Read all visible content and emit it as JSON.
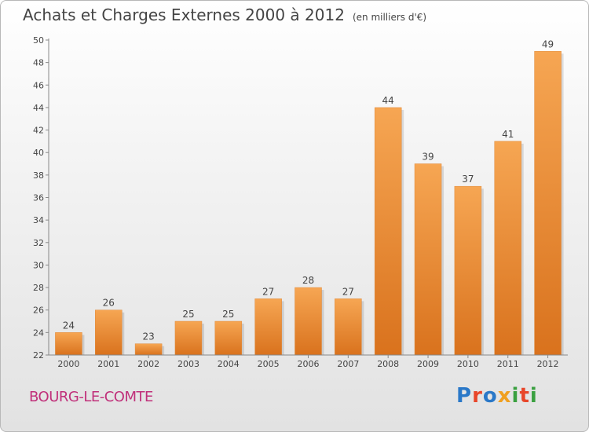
{
  "header": {
    "title": "Achats et Charges Externes 2000 à 2012",
    "unit": "(en milliers d'€)"
  },
  "footer": {
    "commune": "BOURG-LE-COMTE",
    "logo_text": "Proxiti",
    "logo_colors": [
      "#2a78c8",
      "#e8462a",
      "#2a78c8",
      "#f0a020",
      "#3aa040",
      "#e8462a",
      "#3aa040"
    ]
  },
  "colors": {
    "bar_light": "#f6a653",
    "bar_dark": "#d9721d",
    "title": "#444444",
    "commune": "#c0307a"
  },
  "chart_data": {
    "type": "bar",
    "categories": [
      "2000",
      "2001",
      "2002",
      "2003",
      "2004",
      "2005",
      "2006",
      "2007",
      "2008",
      "2009",
      "2010",
      "2011",
      "2012"
    ],
    "values": [
      24,
      26,
      23,
      25,
      25,
      27,
      28,
      27,
      44,
      39,
      37,
      41,
      49
    ],
    "title": "Achats et Charges Externes 2000 à 2012",
    "subtitle": "(en milliers d'€)",
    "ylim": [
      22,
      50
    ],
    "yticks": [
      22,
      24,
      26,
      28,
      30,
      32,
      34,
      36,
      38,
      40,
      42,
      44,
      46,
      48,
      50
    ],
    "grid": false,
    "legend": "none"
  }
}
